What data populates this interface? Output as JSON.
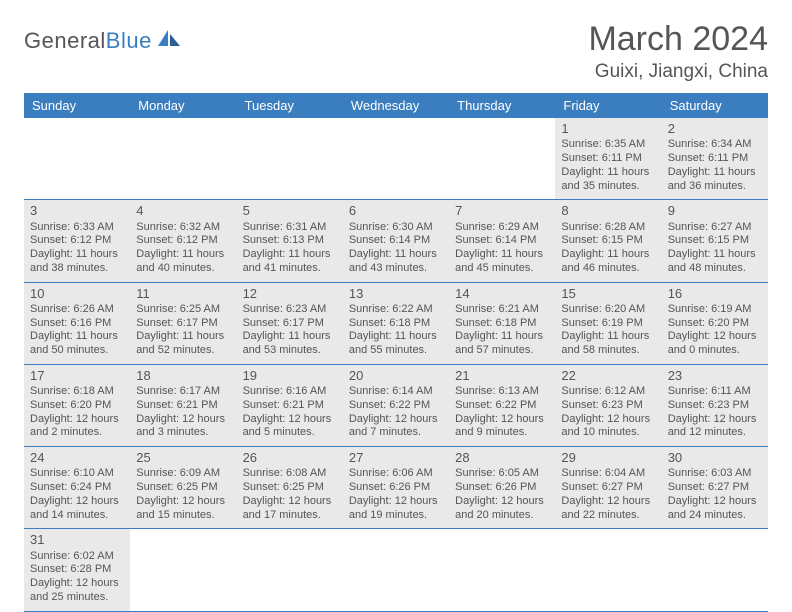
{
  "logo": {
    "text1": "General",
    "text2": "Blue"
  },
  "title": {
    "month": "March 2024",
    "location": "Guixi, Jiangxi, China"
  },
  "colors": {
    "header_bg": "#3b7ec0",
    "header_fg": "#ffffff",
    "cell_bg": "#e9e9e9",
    "border": "#3b7ec0",
    "text": "#555555"
  },
  "fonts": {
    "month_title_pt": 26,
    "location_pt": 14,
    "dayheader_pt": 10,
    "cell_pt": 8
  },
  "day_headers": [
    "Sunday",
    "Monday",
    "Tuesday",
    "Wednesday",
    "Thursday",
    "Friday",
    "Saturday"
  ],
  "grid": {
    "rows": 6,
    "cols": 7
  },
  "days": [
    null,
    null,
    null,
    null,
    null,
    {
      "n": "1",
      "sunrise": "6:35 AM",
      "sunset": "6:11 PM",
      "daylight": "11 hours and 35 minutes."
    },
    {
      "n": "2",
      "sunrise": "6:34 AM",
      "sunset": "6:11 PM",
      "daylight": "11 hours and 36 minutes."
    },
    {
      "n": "3",
      "sunrise": "6:33 AM",
      "sunset": "6:12 PM",
      "daylight": "11 hours and 38 minutes."
    },
    {
      "n": "4",
      "sunrise": "6:32 AM",
      "sunset": "6:12 PM",
      "daylight": "11 hours and 40 minutes."
    },
    {
      "n": "5",
      "sunrise": "6:31 AM",
      "sunset": "6:13 PM",
      "daylight": "11 hours and 41 minutes."
    },
    {
      "n": "6",
      "sunrise": "6:30 AM",
      "sunset": "6:14 PM",
      "daylight": "11 hours and 43 minutes."
    },
    {
      "n": "7",
      "sunrise": "6:29 AM",
      "sunset": "6:14 PM",
      "daylight": "11 hours and 45 minutes."
    },
    {
      "n": "8",
      "sunrise": "6:28 AM",
      "sunset": "6:15 PM",
      "daylight": "11 hours and 46 minutes."
    },
    {
      "n": "9",
      "sunrise": "6:27 AM",
      "sunset": "6:15 PM",
      "daylight": "11 hours and 48 minutes."
    },
    {
      "n": "10",
      "sunrise": "6:26 AM",
      "sunset": "6:16 PM",
      "daylight": "11 hours and 50 minutes."
    },
    {
      "n": "11",
      "sunrise": "6:25 AM",
      "sunset": "6:17 PM",
      "daylight": "11 hours and 52 minutes."
    },
    {
      "n": "12",
      "sunrise": "6:23 AM",
      "sunset": "6:17 PM",
      "daylight": "11 hours and 53 minutes."
    },
    {
      "n": "13",
      "sunrise": "6:22 AM",
      "sunset": "6:18 PM",
      "daylight": "11 hours and 55 minutes."
    },
    {
      "n": "14",
      "sunrise": "6:21 AM",
      "sunset": "6:18 PM",
      "daylight": "11 hours and 57 minutes."
    },
    {
      "n": "15",
      "sunrise": "6:20 AM",
      "sunset": "6:19 PM",
      "daylight": "11 hours and 58 minutes."
    },
    {
      "n": "16",
      "sunrise": "6:19 AM",
      "sunset": "6:20 PM",
      "daylight": "12 hours and 0 minutes."
    },
    {
      "n": "17",
      "sunrise": "6:18 AM",
      "sunset": "6:20 PM",
      "daylight": "12 hours and 2 minutes."
    },
    {
      "n": "18",
      "sunrise": "6:17 AM",
      "sunset": "6:21 PM",
      "daylight": "12 hours and 3 minutes."
    },
    {
      "n": "19",
      "sunrise": "6:16 AM",
      "sunset": "6:21 PM",
      "daylight": "12 hours and 5 minutes."
    },
    {
      "n": "20",
      "sunrise": "6:14 AM",
      "sunset": "6:22 PM",
      "daylight": "12 hours and 7 minutes."
    },
    {
      "n": "21",
      "sunrise": "6:13 AM",
      "sunset": "6:22 PM",
      "daylight": "12 hours and 9 minutes."
    },
    {
      "n": "22",
      "sunrise": "6:12 AM",
      "sunset": "6:23 PM",
      "daylight": "12 hours and 10 minutes."
    },
    {
      "n": "23",
      "sunrise": "6:11 AM",
      "sunset": "6:23 PM",
      "daylight": "12 hours and 12 minutes."
    },
    {
      "n": "24",
      "sunrise": "6:10 AM",
      "sunset": "6:24 PM",
      "daylight": "12 hours and 14 minutes."
    },
    {
      "n": "25",
      "sunrise": "6:09 AM",
      "sunset": "6:25 PM",
      "daylight": "12 hours and 15 minutes."
    },
    {
      "n": "26",
      "sunrise": "6:08 AM",
      "sunset": "6:25 PM",
      "daylight": "12 hours and 17 minutes."
    },
    {
      "n": "27",
      "sunrise": "6:06 AM",
      "sunset": "6:26 PM",
      "daylight": "12 hours and 19 minutes."
    },
    {
      "n": "28",
      "sunrise": "6:05 AM",
      "sunset": "6:26 PM",
      "daylight": "12 hours and 20 minutes."
    },
    {
      "n": "29",
      "sunrise": "6:04 AM",
      "sunset": "6:27 PM",
      "daylight": "12 hours and 22 minutes."
    },
    {
      "n": "30",
      "sunrise": "6:03 AM",
      "sunset": "6:27 PM",
      "daylight": "12 hours and 24 minutes."
    },
    {
      "n": "31",
      "sunrise": "6:02 AM",
      "sunset": "6:28 PM",
      "daylight": "12 hours and 25 minutes."
    },
    null,
    null,
    null,
    null,
    null,
    null
  ],
  "labels": {
    "sunrise": "Sunrise:",
    "sunset": "Sunset:",
    "daylight": "Daylight:"
  }
}
